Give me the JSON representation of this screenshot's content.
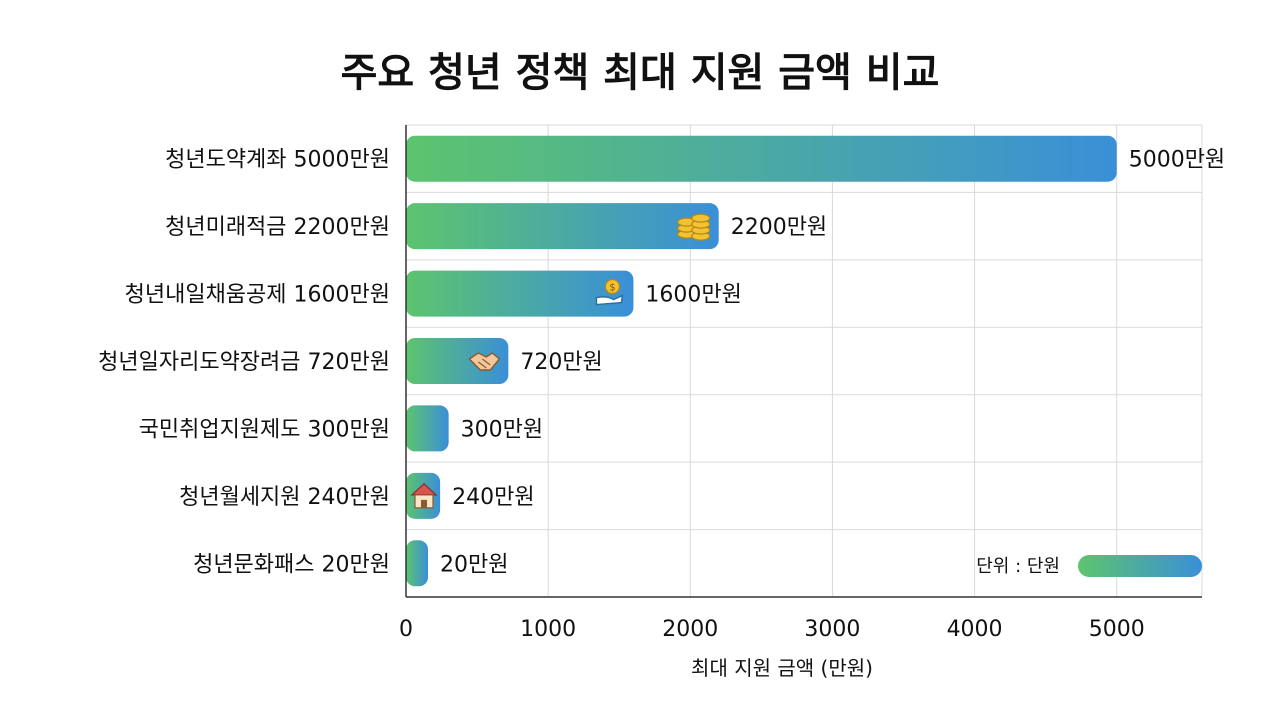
{
  "chart_data": {
    "type": "bar",
    "orientation": "horizontal",
    "title": "주요 청년 정책 최대 지원 금액 비교",
    "xlabel": "최대 지원 금액 (만원)",
    "ylabel": "",
    "categories": [
      "청년도약계좌 5000만원",
      "청년미래적금 2200만원",
      "청년내일채움공제 1600만원",
      "청년일자리도약장려금 720만원",
      "국민취업지원제도 300만원",
      "청년월세지원 240만원",
      "청년문화패스 20만원"
    ],
    "values": [
      5000,
      2200,
      1600,
      720,
      300,
      240,
      20
    ],
    "value_labels": [
      "5000만원",
      "2200만원",
      "1600만원",
      "720만원",
      "300만원",
      "240만원",
      "20만원"
    ],
    "bar_icons": [
      "",
      "coins-icon",
      "money-hand-icon",
      "handshake-icon",
      "",
      "house-icon",
      ""
    ],
    "xlim": [
      0,
      5600
    ],
    "xticks": [
      0,
      1000,
      2000,
      3000,
      4000,
      5000
    ],
    "grid": true,
    "legend": {
      "text": "단위 : 단원",
      "placement": "bottom-right"
    },
    "colors": {
      "gradient_start": "#5cc46e",
      "gradient_end": "#3a8fd8"
    }
  }
}
